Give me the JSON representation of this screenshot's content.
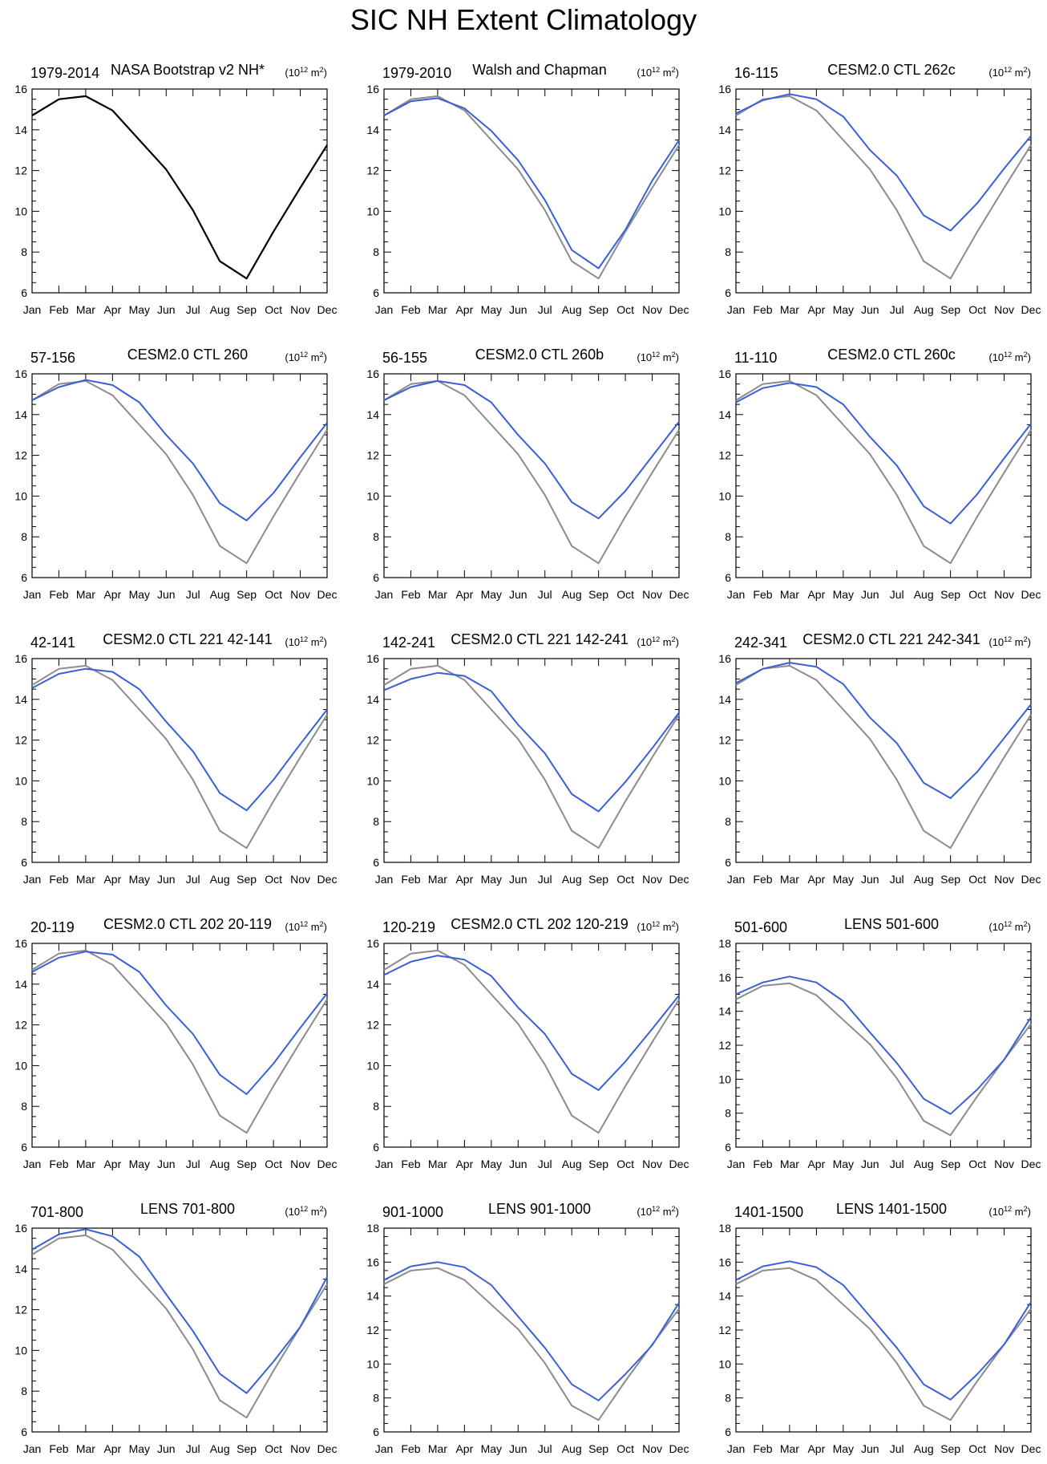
{
  "title": "SIC NH Extent Climatology",
  "units": "(10^12 m^2)",
  "units_base": "(10",
  "units_exp": "12",
  "units_m": " m",
  "units_m_exp": "2",
  "units_close": ")",
  "colors": {
    "observed": "#000000",
    "reference": "#8c8c8c",
    "model": "#3a5fd6"
  },
  "chart_data": [
    {
      "type": "line",
      "years": "1979-2014",
      "name": "NASA Bootstrap v2 NH*",
      "ylim": [
        6,
        16
      ],
      "yticks": [
        6,
        8,
        10,
        12,
        14,
        16
      ],
      "categories": [
        "Jan",
        "Feb",
        "Mar",
        "Apr",
        "May",
        "Jun",
        "Jul",
        "Aug",
        "Sep",
        "Oct",
        "Nov",
        "Dec"
      ],
      "series": [
        {
          "role": "observed",
          "values": [
            14.7,
            15.5,
            15.65,
            14.95,
            13.5,
            12.05,
            10.05,
            7.55,
            6.7,
            9.0,
            11.15,
            13.25
          ]
        }
      ]
    },
    {
      "type": "line",
      "years": "1979-2010",
      "name": "Walsh and Chapman",
      "ylim": [
        6,
        16
      ],
      "yticks": [
        6,
        8,
        10,
        12,
        14,
        16
      ],
      "categories": [
        "Jan",
        "Feb",
        "Mar",
        "Apr",
        "May",
        "Jun",
        "Jul",
        "Aug",
        "Sep",
        "Oct",
        "Nov",
        "Dec"
      ],
      "series": [
        {
          "role": "reference",
          "values": [
            14.7,
            15.5,
            15.65,
            14.95,
            13.5,
            12.05,
            10.05,
            7.55,
            6.7,
            9.0,
            11.15,
            13.25
          ]
        },
        {
          "role": "model",
          "values": [
            14.7,
            15.4,
            15.55,
            15.05,
            13.95,
            12.5,
            10.55,
            8.1,
            7.2,
            9.1,
            11.5,
            13.5
          ]
        }
      ]
    },
    {
      "type": "line",
      "years": "16-115",
      "name": "CESM2.0 CTL 262c",
      "ylim": [
        6,
        16
      ],
      "yticks": [
        6,
        8,
        10,
        12,
        14,
        16
      ],
      "categories": [
        "Jan",
        "Feb",
        "Mar",
        "Apr",
        "May",
        "Jun",
        "Jul",
        "Aug",
        "Sep",
        "Oct",
        "Nov",
        "Dec"
      ],
      "series": [
        {
          "role": "reference",
          "values": [
            14.7,
            15.5,
            15.65,
            14.95,
            13.5,
            12.05,
            10.05,
            7.55,
            6.7,
            9.0,
            11.15,
            13.25
          ]
        },
        {
          "role": "model",
          "values": [
            14.8,
            15.45,
            15.75,
            15.5,
            14.65,
            13.0,
            11.75,
            9.8,
            9.05,
            10.4,
            12.1,
            13.7
          ]
        }
      ]
    },
    {
      "type": "line",
      "years": "57-156",
      "name": "CESM2.0 CTL 260",
      "ylim": [
        6,
        16
      ],
      "yticks": [
        6,
        8,
        10,
        12,
        14,
        16
      ],
      "categories": [
        "Jan",
        "Feb",
        "Mar",
        "Apr",
        "May",
        "Jun",
        "Jul",
        "Aug",
        "Sep",
        "Oct",
        "Nov",
        "Dec"
      ],
      "series": [
        {
          "role": "reference",
          "values": [
            14.7,
            15.5,
            15.65,
            14.95,
            13.5,
            12.05,
            10.05,
            7.55,
            6.7,
            9.0,
            11.15,
            13.25
          ]
        },
        {
          "role": "model",
          "values": [
            14.7,
            15.35,
            15.7,
            15.45,
            14.6,
            13.0,
            11.6,
            9.65,
            8.8,
            10.15,
            11.9,
            13.6
          ]
        }
      ]
    },
    {
      "type": "line",
      "years": "56-155",
      "name": "CESM2.0 CTL 260b",
      "ylim": [
        6,
        16
      ],
      "yticks": [
        6,
        8,
        10,
        12,
        14,
        16
      ],
      "categories": [
        "Jan",
        "Feb",
        "Mar",
        "Apr",
        "May",
        "Jun",
        "Jul",
        "Aug",
        "Sep",
        "Oct",
        "Nov",
        "Dec"
      ],
      "series": [
        {
          "role": "reference",
          "values": [
            14.7,
            15.5,
            15.65,
            14.95,
            13.5,
            12.05,
            10.05,
            7.55,
            6.7,
            9.0,
            11.15,
            13.25
          ]
        },
        {
          "role": "model",
          "values": [
            14.7,
            15.35,
            15.65,
            15.45,
            14.6,
            13.0,
            11.6,
            9.7,
            8.9,
            10.25,
            11.95,
            13.65
          ]
        }
      ]
    },
    {
      "type": "line",
      "years": "11-110",
      "name": "CESM2.0 CTL 260c",
      "ylim": [
        6,
        16
      ],
      "yticks": [
        6,
        8,
        10,
        12,
        14,
        16
      ],
      "categories": [
        "Jan",
        "Feb",
        "Mar",
        "Apr",
        "May",
        "Jun",
        "Jul",
        "Aug",
        "Sep",
        "Oct",
        "Nov",
        "Dec"
      ],
      "series": [
        {
          "role": "reference",
          "values": [
            14.7,
            15.5,
            15.65,
            14.95,
            13.5,
            12.05,
            10.05,
            7.55,
            6.7,
            9.0,
            11.15,
            13.25
          ]
        },
        {
          "role": "model",
          "values": [
            14.6,
            15.3,
            15.55,
            15.35,
            14.5,
            12.9,
            11.5,
            9.5,
            8.65,
            10.1,
            11.85,
            13.55
          ]
        }
      ]
    },
    {
      "type": "line",
      "years": "42-141",
      "name": "CESM2.0 CTL 221 42-141",
      "ylim": [
        6,
        16
      ],
      "yticks": [
        6,
        8,
        10,
        12,
        14,
        16
      ],
      "categories": [
        "Jan",
        "Feb",
        "Mar",
        "Apr",
        "May",
        "Jun",
        "Jul",
        "Aug",
        "Sep",
        "Oct",
        "Nov",
        "Dec"
      ],
      "series": [
        {
          "role": "reference",
          "values": [
            14.7,
            15.5,
            15.65,
            14.95,
            13.5,
            12.05,
            10.05,
            7.55,
            6.7,
            9.0,
            11.15,
            13.25
          ]
        },
        {
          "role": "model",
          "values": [
            14.55,
            15.25,
            15.5,
            15.35,
            14.5,
            12.9,
            11.45,
            9.4,
            8.55,
            10.05,
            11.8,
            13.5
          ]
        }
      ]
    },
    {
      "type": "line",
      "years": "142-241",
      "name": "CESM2.0 CTL 221 142-241",
      "ylim": [
        6,
        16
      ],
      "yticks": [
        6,
        8,
        10,
        12,
        14,
        16
      ],
      "categories": [
        "Jan",
        "Feb",
        "Mar",
        "Apr",
        "May",
        "Jun",
        "Jul",
        "Aug",
        "Sep",
        "Oct",
        "Nov",
        "Dec"
      ],
      "series": [
        {
          "role": "reference",
          "values": [
            14.7,
            15.5,
            15.65,
            14.95,
            13.5,
            12.05,
            10.05,
            7.55,
            6.7,
            9.0,
            11.15,
            13.25
          ]
        },
        {
          "role": "model",
          "values": [
            14.45,
            15.0,
            15.3,
            15.15,
            14.4,
            12.75,
            11.35,
            9.35,
            8.5,
            9.95,
            11.6,
            13.35
          ]
        }
      ]
    },
    {
      "type": "line",
      "years": "242-341",
      "name": "CESM2.0 CTL 221 242-341",
      "ylim": [
        6,
        16
      ],
      "yticks": [
        6,
        8,
        10,
        12,
        14,
        16
      ],
      "categories": [
        "Jan",
        "Feb",
        "Mar",
        "Apr",
        "May",
        "Jun",
        "Jul",
        "Aug",
        "Sep",
        "Oct",
        "Nov",
        "Dec"
      ],
      "series": [
        {
          "role": "reference",
          "values": [
            14.7,
            15.5,
            15.65,
            14.95,
            13.5,
            12.05,
            10.05,
            7.55,
            6.7,
            9.0,
            11.15,
            13.25
          ]
        },
        {
          "role": "model",
          "values": [
            14.8,
            15.5,
            15.8,
            15.6,
            14.75,
            13.1,
            11.85,
            9.9,
            9.15,
            10.45,
            12.1,
            13.75
          ]
        }
      ]
    },
    {
      "type": "line",
      "years": "20-119",
      "name": "CESM2.0 CTL 202 20-119",
      "ylim": [
        6,
        16
      ],
      "yticks": [
        6,
        8,
        10,
        12,
        14,
        16
      ],
      "categories": [
        "Jan",
        "Feb",
        "Mar",
        "Apr",
        "May",
        "Jun",
        "Jul",
        "Aug",
        "Sep",
        "Oct",
        "Nov",
        "Dec"
      ],
      "series": [
        {
          "role": "reference",
          "values": [
            14.7,
            15.5,
            15.65,
            14.95,
            13.5,
            12.05,
            10.05,
            7.55,
            6.7,
            9.0,
            11.15,
            13.25
          ]
        },
        {
          "role": "model",
          "values": [
            14.6,
            15.3,
            15.6,
            15.45,
            14.6,
            12.95,
            11.55,
            9.55,
            8.6,
            10.1,
            11.85,
            13.55
          ]
        }
      ]
    },
    {
      "type": "line",
      "years": "120-219",
      "name": "CESM2.0 CTL 202 120-219",
      "ylim": [
        6,
        16
      ],
      "yticks": [
        6,
        8,
        10,
        12,
        14,
        16
      ],
      "categories": [
        "Jan",
        "Feb",
        "Mar",
        "Apr",
        "May",
        "Jun",
        "Jul",
        "Aug",
        "Sep",
        "Oct",
        "Nov",
        "Dec"
      ],
      "series": [
        {
          "role": "reference",
          "values": [
            14.7,
            15.5,
            15.65,
            14.95,
            13.5,
            12.05,
            10.05,
            7.55,
            6.7,
            9.0,
            11.15,
            13.25
          ]
        },
        {
          "role": "model",
          "values": [
            14.45,
            15.1,
            15.4,
            15.2,
            14.4,
            12.85,
            11.55,
            9.6,
            8.8,
            10.2,
            11.8,
            13.45
          ]
        }
      ]
    },
    {
      "type": "line",
      "years": "501-600",
      "name": "LENS 501-600",
      "ylim": [
        6,
        18
      ],
      "yticks": [
        6,
        8,
        10,
        12,
        14,
        16,
        18
      ],
      "categories": [
        "Jan",
        "Feb",
        "Mar",
        "Apr",
        "May",
        "Jun",
        "Jul",
        "Aug",
        "Sep",
        "Oct",
        "Nov",
        "Dec"
      ],
      "series": [
        {
          "role": "reference",
          "values": [
            14.7,
            15.5,
            15.65,
            14.95,
            13.5,
            12.05,
            10.05,
            7.55,
            6.7,
            9.0,
            11.15,
            13.25
          ]
        },
        {
          "role": "model",
          "values": [
            15.0,
            15.7,
            16.05,
            15.7,
            14.6,
            12.75,
            10.95,
            8.85,
            7.95,
            9.4,
            11.15,
            13.65
          ]
        }
      ]
    },
    {
      "type": "line",
      "years": "701-800",
      "name": "LENS 701-800",
      "ylim": [
        6,
        16
      ],
      "yticks": [
        6,
        8,
        10,
        12,
        14,
        16
      ],
      "categories": [
        "Jan",
        "Feb",
        "Mar",
        "Apr",
        "May",
        "Jun",
        "Jul",
        "Aug",
        "Sep",
        "Oct",
        "Nov",
        "Dec"
      ],
      "series": [
        {
          "role": "reference",
          "values": [
            14.7,
            15.5,
            15.65,
            14.95,
            13.5,
            12.05,
            10.05,
            7.55,
            6.7,
            9.0,
            11.15,
            13.25
          ]
        },
        {
          "role": "model",
          "values": [
            14.95,
            15.7,
            15.95,
            15.6,
            14.6,
            12.75,
            10.95,
            8.85,
            7.9,
            9.45,
            11.15,
            13.6
          ]
        }
      ]
    },
    {
      "type": "line",
      "years": "901-1000",
      "name": "LENS 901-1000",
      "ylim": [
        6,
        18
      ],
      "yticks": [
        6,
        8,
        10,
        12,
        14,
        16,
        18
      ],
      "categories": [
        "Jan",
        "Feb",
        "Mar",
        "Apr",
        "May",
        "Jun",
        "Jul",
        "Aug",
        "Sep",
        "Oct",
        "Nov",
        "Dec"
      ],
      "series": [
        {
          "role": "reference",
          "values": [
            14.7,
            15.5,
            15.65,
            14.95,
            13.5,
            12.05,
            10.05,
            7.55,
            6.7,
            9.0,
            11.15,
            13.25
          ]
        },
        {
          "role": "model",
          "values": [
            14.95,
            15.75,
            16.0,
            15.7,
            14.65,
            12.8,
            10.95,
            8.8,
            7.85,
            9.4,
            11.1,
            13.6
          ]
        }
      ]
    },
    {
      "type": "line",
      "years": "1401-1500",
      "name": "LENS 1401-1500",
      "ylim": [
        6,
        18
      ],
      "yticks": [
        6,
        8,
        10,
        12,
        14,
        16,
        18
      ],
      "categories": [
        "Jan",
        "Feb",
        "Mar",
        "Apr",
        "May",
        "Jun",
        "Jul",
        "Aug",
        "Sep",
        "Oct",
        "Nov",
        "Dec"
      ],
      "series": [
        {
          "role": "reference",
          "values": [
            14.7,
            15.5,
            15.65,
            14.95,
            13.5,
            12.05,
            10.05,
            7.55,
            6.7,
            9.0,
            11.15,
            13.25
          ]
        },
        {
          "role": "model",
          "values": [
            14.95,
            15.75,
            16.05,
            15.7,
            14.65,
            12.8,
            10.95,
            8.8,
            7.9,
            9.4,
            11.15,
            13.65
          ]
        }
      ]
    }
  ]
}
